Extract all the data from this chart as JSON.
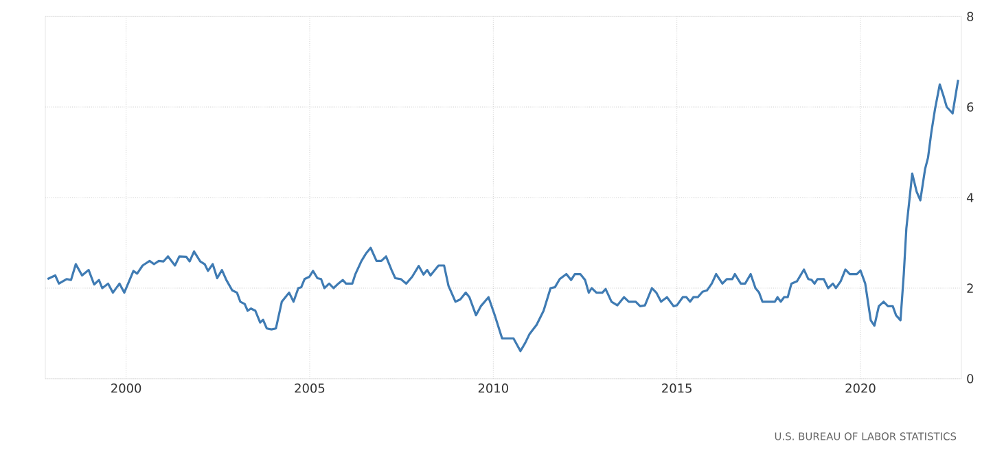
{
  "chart_data": {
    "type": "line",
    "x": [
      1997.86,
      1998.07,
      1998.17,
      1998.38,
      1998.5,
      1998.63,
      1998.8,
      1998.98,
      1999.13,
      1999.26,
      1999.35,
      1999.51,
      1999.64,
      1999.82,
      1999.95,
      2000.2,
      2000.3,
      2000.45,
      2000.64,
      2000.76,
      2000.89,
      2001.02,
      2001.14,
      2001.33,
      2001.45,
      2001.64,
      2001.73,
      2001.85,
      2002.02,
      2002.14,
      2002.23,
      2002.36,
      2002.48,
      2002.61,
      2002.73,
      2002.89,
      2003.02,
      2003.11,
      2003.23,
      2003.31,
      2003.4,
      2003.52,
      2003.65,
      2003.73,
      2003.83,
      2003.96,
      2004.08,
      2004.24,
      2004.34,
      2004.44,
      2004.56,
      2004.69,
      2004.77,
      2004.86,
      2004.99,
      2005.09,
      2005.21,
      2005.31,
      2005.4,
      2005.53,
      2005.65,
      2005.78,
      2005.9,
      2005.99,
      2006.16,
      2006.24,
      2006.41,
      2006.53,
      2006.66,
      2006.82,
      2006.95,
      2007.08,
      2007.23,
      2007.33,
      2007.48,
      2007.63,
      2007.79,
      2007.97,
      2008.1,
      2008.2,
      2008.29,
      2008.41,
      2008.51,
      2008.66,
      2008.78,
      2008.97,
      2009.1,
      2009.25,
      2009.35,
      2009.53,
      2009.66,
      2009.87,
      2010.04,
      2010.24,
      2010.55,
      2010.74,
      2010.87,
      2010.99,
      2011.18,
      2011.37,
      2011.56,
      2011.68,
      2011.81,
      2011.99,
      2012.12,
      2012.22,
      2012.37,
      2012.5,
      2012.6,
      2012.68,
      2012.81,
      2012.97,
      2013.06,
      2013.22,
      2013.38,
      2013.56,
      2013.69,
      2013.88,
      2014.0,
      2014.13,
      2014.32,
      2014.44,
      2014.57,
      2014.73,
      2014.91,
      2015.0,
      2015.16,
      2015.26,
      2015.36,
      2015.45,
      2015.57,
      2015.7,
      2015.82,
      2015.95,
      2016.07,
      2016.24,
      2016.36,
      2016.51,
      2016.58,
      2016.74,
      2016.86,
      2017.01,
      2017.14,
      2017.24,
      2017.33,
      2017.52,
      2017.67,
      2017.74,
      2017.83,
      2017.92,
      2018.02,
      2018.12,
      2018.27,
      2018.46,
      2018.58,
      2018.67,
      2018.75,
      2018.83,
      2019.0,
      2019.12,
      2019.25,
      2019.33,
      2019.46,
      2019.59,
      2019.71,
      2019.9,
      2020.0,
      2020.13,
      2020.28,
      2020.38,
      2020.5,
      2020.63,
      2020.75,
      2020.88,
      2020.97,
      2021.09,
      2021.18,
      2021.25,
      2021.41,
      2021.53,
      2021.63,
      2021.76,
      2021.84,
      2021.93,
      2022.03,
      2022.16,
      2022.26,
      2022.35,
      2022.51,
      2022.66
    ],
    "series": [
      {
        "color": "#3f7bb3",
        "values": [
          2.2,
          2.28,
          2.1,
          2.2,
          2.18,
          2.53,
          2.28,
          2.4,
          2.08,
          2.18,
          2.0,
          2.1,
          1.9,
          2.1,
          1.9,
          2.38,
          2.32,
          2.5,
          2.6,
          2.53,
          2.6,
          2.59,
          2.7,
          2.5,
          2.7,
          2.69,
          2.59,
          2.81,
          2.59,
          2.53,
          2.38,
          2.53,
          2.22,
          2.4,
          2.18,
          1.95,
          1.9,
          1.7,
          1.65,
          1.5,
          1.55,
          1.5,
          1.24,
          1.3,
          1.11,
          1.09,
          1.11,
          1.7,
          1.8,
          1.9,
          1.7,
          2.0,
          2.02,
          2.2,
          2.25,
          2.38,
          2.22,
          2.2,
          2.0,
          2.1,
          2.0,
          2.1,
          2.18,
          2.1,
          2.1,
          2.3,
          2.6,
          2.76,
          2.89,
          2.6,
          2.6,
          2.7,
          2.4,
          2.22,
          2.2,
          2.1,
          2.25,
          2.49,
          2.3,
          2.4,
          2.28,
          2.4,
          2.5,
          2.5,
          2.05,
          1.7,
          1.75,
          1.9,
          1.8,
          1.4,
          1.6,
          1.8,
          1.4,
          0.89,
          0.89,
          0.61,
          0.79,
          0.99,
          1.19,
          1.5,
          2.0,
          2.02,
          2.2,
          2.31,
          2.18,
          2.31,
          2.31,
          2.18,
          1.9,
          2.0,
          1.9,
          1.9,
          1.98,
          1.7,
          1.62,
          1.8,
          1.7,
          1.7,
          1.6,
          1.62,
          2.0,
          1.9,
          1.7,
          1.8,
          1.6,
          1.62,
          1.8,
          1.8,
          1.7,
          1.8,
          1.8,
          1.92,
          1.95,
          2.1,
          2.31,
          2.1,
          2.2,
          2.2,
          2.31,
          2.1,
          2.1,
          2.31,
          2.0,
          1.9,
          1.7,
          1.7,
          1.7,
          1.8,
          1.7,
          1.8,
          1.8,
          2.1,
          2.15,
          2.41,
          2.2,
          2.18,
          2.1,
          2.2,
          2.2,
          2.0,
          2.1,
          2.0,
          2.15,
          2.41,
          2.31,
          2.31,
          2.39,
          2.1,
          1.29,
          1.17,
          1.6,
          1.7,
          1.6,
          1.6,
          1.4,
          1.29,
          2.31,
          3.32,
          4.53,
          4.13,
          3.94,
          4.63,
          4.88,
          5.44,
          5.95,
          6.5,
          6.25,
          6.0,
          5.86,
          6.6
        ]
      }
    ],
    "xlim": [
      1997.8,
      2022.75
    ],
    "xticks": [
      2000,
      2005,
      2010,
      2015,
      2020
    ],
    "ylim": [
      0,
      8
    ],
    "yticks": [
      0,
      2,
      4,
      6,
      8
    ],
    "grid": true,
    "marker": "none",
    "line_style": "solid",
    "annotations": [
      "U.S. BUREAU OF LABOR STATISTICS"
    ]
  }
}
